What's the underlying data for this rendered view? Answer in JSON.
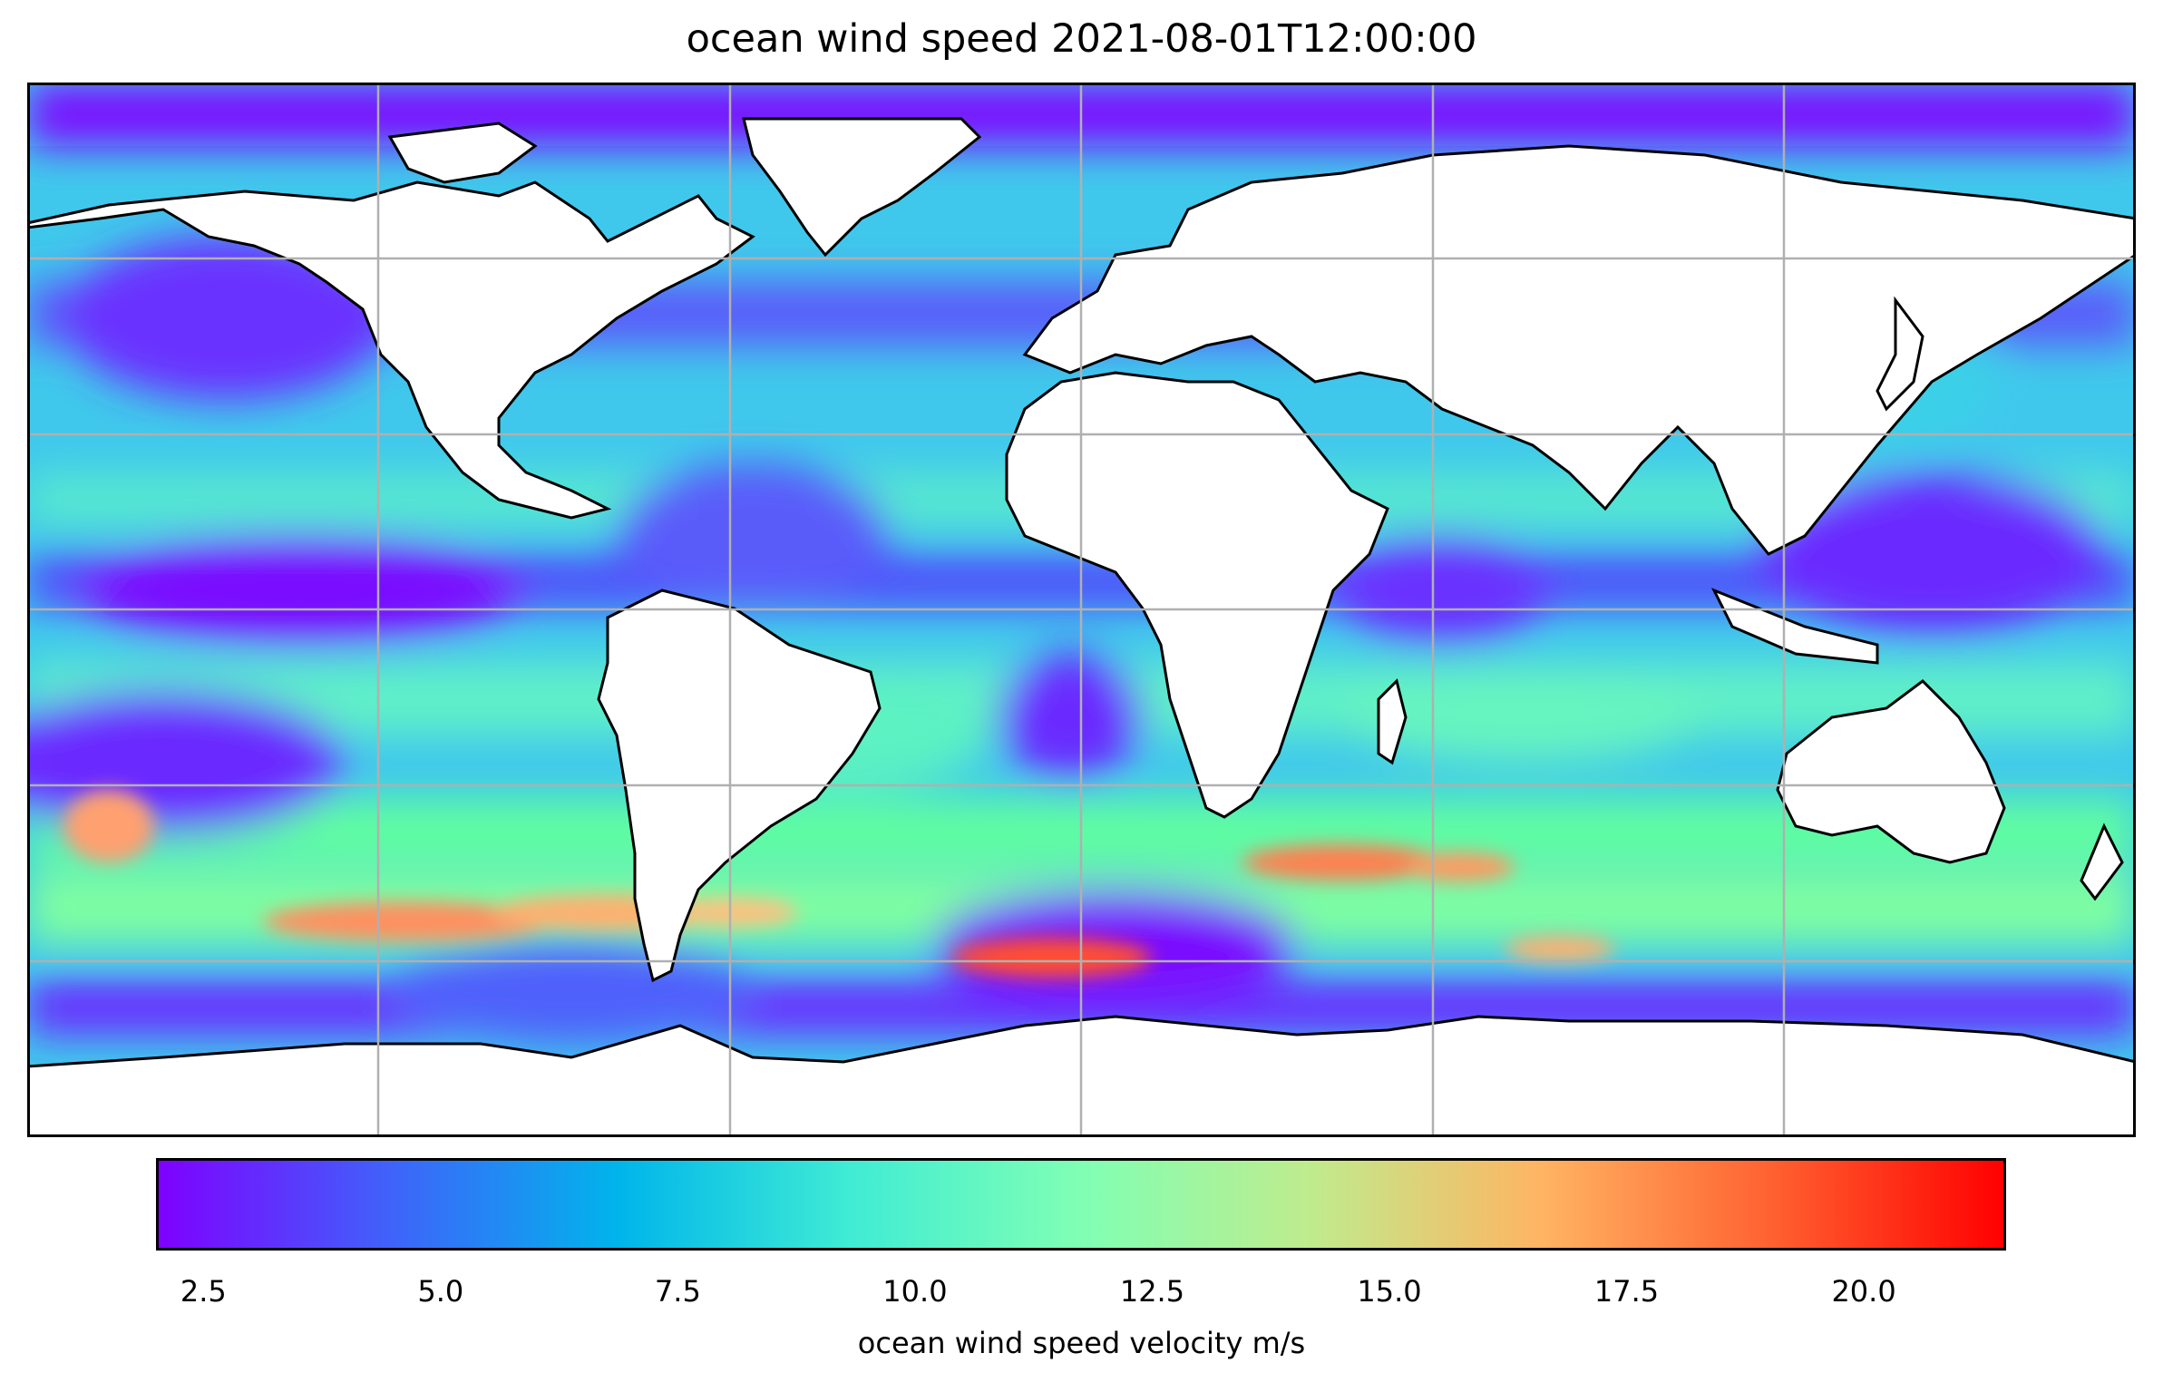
{
  "title": "ocean wind speed 2021-08-01T12:00:00",
  "colorbar": {
    "label": "ocean wind speed velocity m/s",
    "min": 2.0,
    "max": 21.5,
    "ticks": [
      "2.5",
      "5.0",
      "7.5",
      "10.0",
      "12.5",
      "15.0",
      "17.5",
      "20.0"
    ],
    "colormap": "rainbow",
    "colors": [
      "#7f00ff",
      "#4062fa",
      "#00b5eb",
      "#40ecd4",
      "#80ffb4",
      "#c0eb8d",
      "#ffb462",
      "#ff6030",
      "#ff0000"
    ]
  },
  "map": {
    "projection": "PlateCarree",
    "variable": "ocean wind speed",
    "units": "m/s",
    "gridlines": true,
    "coastlines": true,
    "borders": true,
    "land_color": "#ffffff"
  }
}
